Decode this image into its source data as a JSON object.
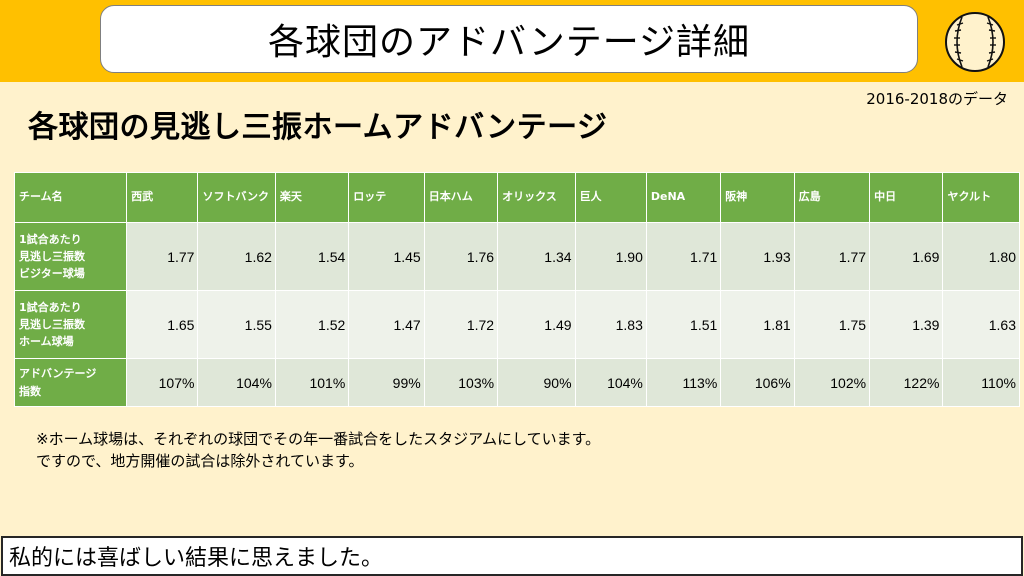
{
  "header": {
    "title": "各球団のアドバンテージ詳細"
  },
  "icon": "baseball-icon",
  "colors": {
    "top_band": "#ffc000",
    "background": "#fff2cc",
    "header_green": "#70ad47",
    "row_dark": "#dfe7d8",
    "row_light": "#eef2ea"
  },
  "subtitle": "各球団の見逃し三振ホームアドバンテージ",
  "period": "2016-2018のデータ",
  "table": {
    "corner": "チーム名",
    "teams": [
      "西武",
      "ソフトバンク",
      "楽天",
      "ロッテ",
      "日本ハム",
      "オリックス",
      "巨人",
      "DeNA",
      "阪神",
      "広島",
      "中日",
      "ヤクルト"
    ],
    "rows": [
      {
        "label_lines": [
          "1試合あたり",
          "見逃し三振数",
          "ビジター球場"
        ],
        "values": [
          "1.77",
          "1.62",
          "1.54",
          "1.45",
          "1.76",
          "1.34",
          "1.90",
          "1.71",
          "1.93",
          "1.77",
          "1.69",
          "1.80"
        ]
      },
      {
        "label_lines": [
          "1試合あたり",
          "見逃し三振数",
          "ホーム球場"
        ],
        "values": [
          "1.65",
          "1.55",
          "1.52",
          "1.47",
          "1.72",
          "1.49",
          "1.83",
          "1.51",
          "1.81",
          "1.75",
          "1.39",
          "1.63"
        ]
      },
      {
        "label_lines": [
          "アドバンテージ",
          "指数"
        ],
        "values": [
          "107%",
          "104%",
          "101%",
          "99%",
          "103%",
          "90%",
          "104%",
          "113%",
          "106%",
          "102%",
          "122%",
          "110%"
        ]
      }
    ]
  },
  "note_lines": [
    "※ホーム球場は、それぞれの球団でその年一番試合をしたスタジアムにしています。",
    "ですので、地方開催の試合は除外されています。"
  ],
  "footer": "私的には喜ばしい結果に思えました。"
}
